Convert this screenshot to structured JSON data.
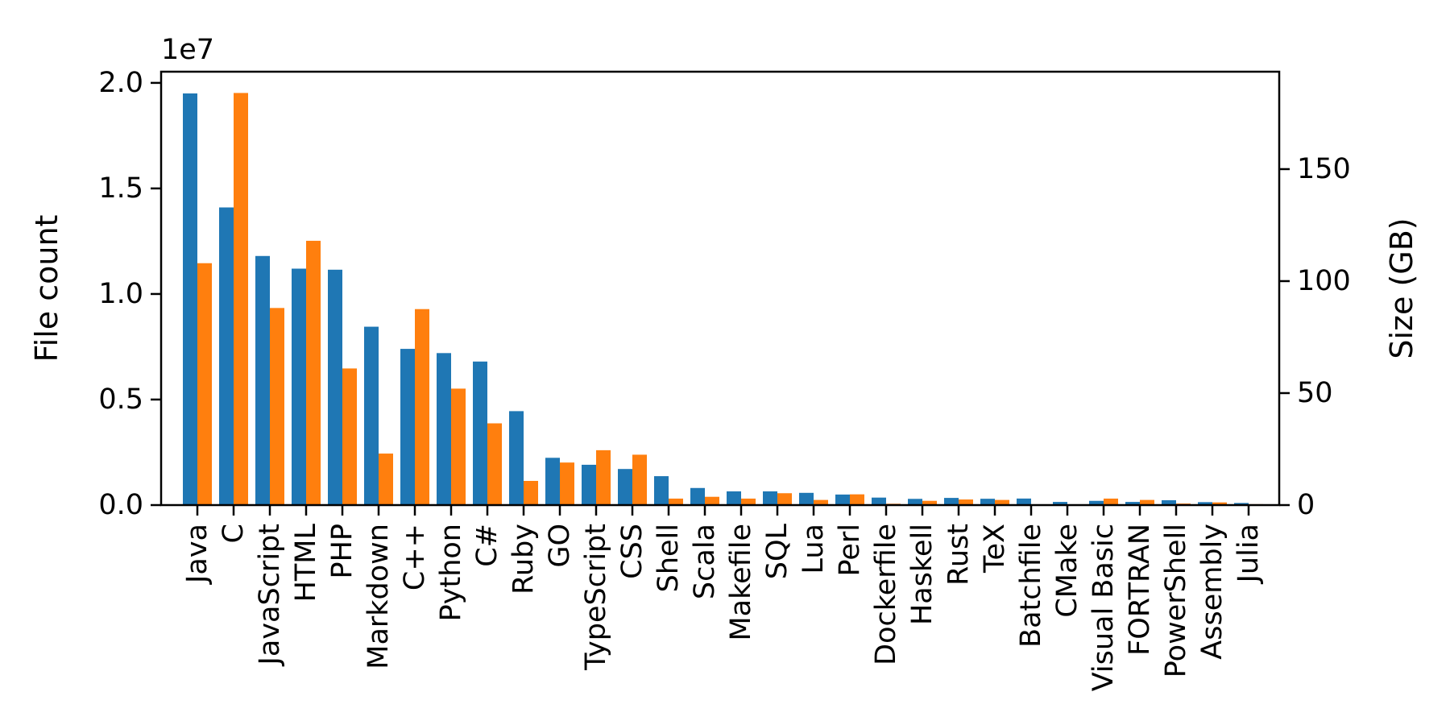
{
  "figure": {
    "background": "#ffffff"
  },
  "chart_data": {
    "type": "bar",
    "title": "",
    "grid": false,
    "legend": false,
    "offset_text": "1e7",
    "categories": [
      "Java",
      "C",
      "JavaScript",
      "HTML",
      "PHP",
      "Markdown",
      "C++",
      "Python",
      "C#",
      "Ruby",
      "GO",
      "TypeScript",
      "CSS",
      "Shell",
      "Scala",
      "Makefile",
      "SQL",
      "Lua",
      "Perl",
      "Dockerfile",
      "Haskell",
      "Rust",
      "TeX",
      "Batchfile",
      "CMake",
      "Visual Basic",
      "FORTRAN",
      "PowerShell",
      "Assembly",
      "Julia"
    ],
    "series": [
      {
        "name": "File count",
        "axis": "left",
        "color": "#1f77b4",
        "values": [
          19500000,
          14100000,
          11800000,
          11200000,
          11150000,
          8450000,
          7400000,
          7200000,
          6800000,
          4450000,
          2240000,
          1910000,
          1710000,
          1370000,
          810000,
          650000,
          650000,
          580000,
          500000,
          355000,
          295000,
          340000,
          300000,
          310000,
          150000,
          200000,
          150000,
          230000,
          140000,
          100000
        ]
      },
      {
        "name": "Size (GB)",
        "axis": "right",
        "color": "#ff7f0e",
        "values": [
          108,
          184,
          88,
          118,
          61,
          23,
          87.5,
          52,
          36.5,
          10.8,
          19,
          24.5,
          22.5,
          2.9,
          3.7,
          2.9,
          5.3,
          2.3,
          4.8,
          0.6,
          1.9,
          2.5,
          2.3,
          0.3,
          0.3,
          2.9,
          2.3,
          0.7,
          1.2,
          0.4
        ]
      }
    ],
    "left_axis": {
      "label": "File count",
      "label_color": "#1f77b4",
      "max": 20530000,
      "ticks": [
        {
          "value": 0,
          "label": "0.0"
        },
        {
          "value": 5000000,
          "label": "0.5"
        },
        {
          "value": 10000000,
          "label": "1.0"
        },
        {
          "value": 15000000,
          "label": "1.5"
        },
        {
          "value": 20000000,
          "label": "2.0"
        }
      ]
    },
    "right_axis": {
      "label": "Size (GB)",
      "label_color": "#ff7f0e",
      "max": 193.5,
      "ticks": [
        {
          "value": 0,
          "label": "0"
        },
        {
          "value": 50,
          "label": "50"
        },
        {
          "value": 100,
          "label": "100"
        },
        {
          "value": 150,
          "label": "150"
        }
      ]
    }
  }
}
